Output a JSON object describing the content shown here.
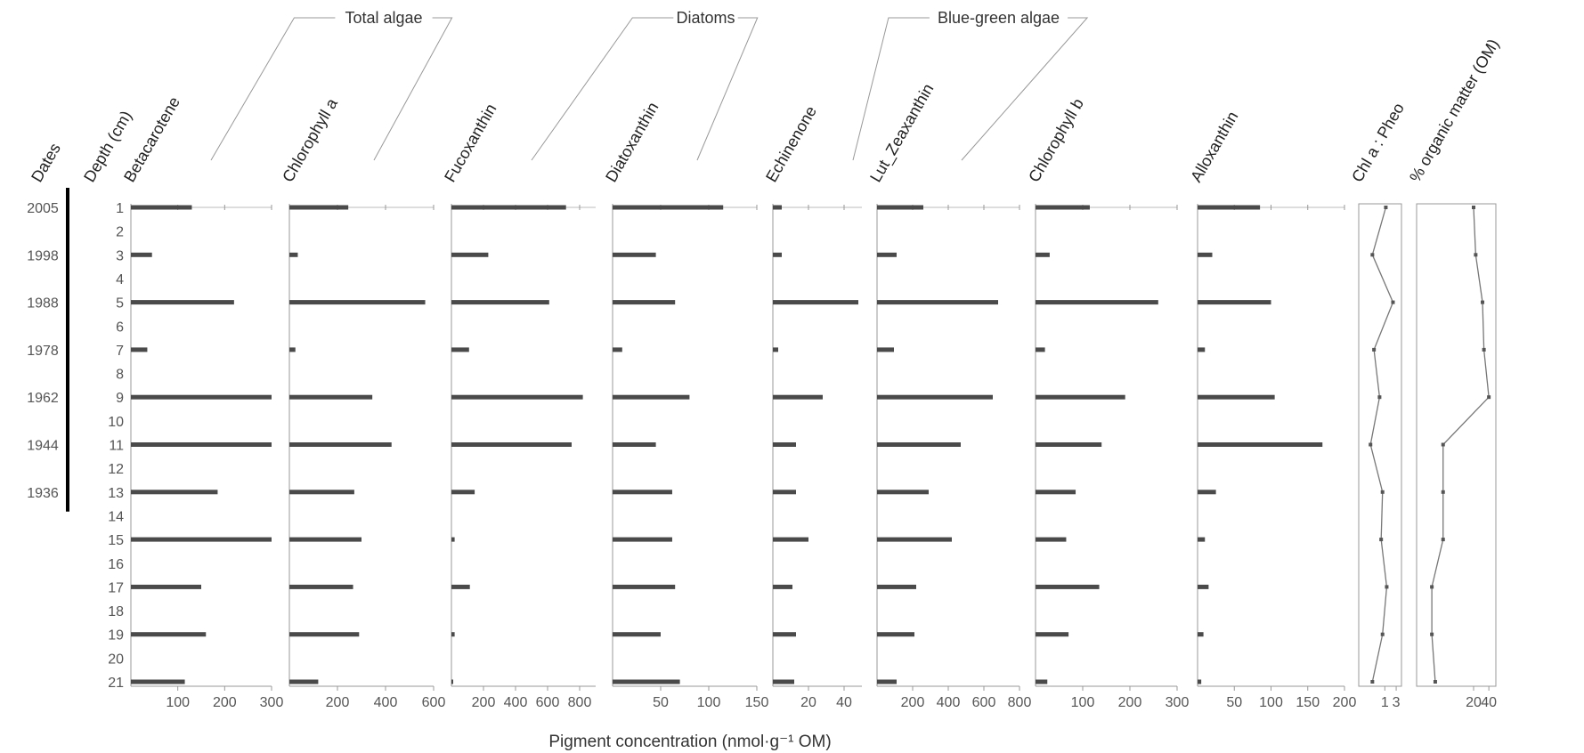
{
  "chart_data": {
    "type": "bar",
    "xlabel": "Pigment concentration (nmol·g⁻¹ OM)",
    "left_axis": {
      "dates_label": "Dates",
      "depth_label": "Depth (cm)",
      "depths": [
        1,
        2,
        3,
        4,
        5,
        6,
        7,
        8,
        9,
        10,
        11,
        12,
        13,
        14,
        15,
        16,
        17,
        18,
        19,
        20,
        21
      ],
      "date_marks": [
        {
          "depth": 1,
          "label": "2005"
        },
        {
          "depth": 3,
          "label": "1998"
        },
        {
          "depth": 5,
          "label": "1988"
        },
        {
          "depth": 7,
          "label": "1978"
        },
        {
          "depth": 9,
          "label": "1962"
        },
        {
          "depth": 11,
          "label": "1944"
        },
        {
          "depth": 13,
          "label": "1936"
        }
      ]
    },
    "groups": [
      {
        "label": "Total algae",
        "panels": [
          0,
          1
        ]
      },
      {
        "label": "Diatoms",
        "panels": [
          2,
          3
        ]
      },
      {
        "label": "Blue-green algae",
        "panels": [
          4,
          5
        ]
      }
    ],
    "series_depths": [
      1,
      3,
      5,
      7,
      9,
      11,
      13,
      15,
      17,
      19,
      21
    ],
    "panels": [
      {
        "name": "Betacarotene",
        "kind": "bar",
        "xlim": [
          0,
          300
        ],
        "ticks": [
          100,
          200,
          300
        ],
        "values": [
          130,
          45,
          220,
          35,
          300,
          300,
          185,
          300,
          150,
          160,
          115
        ]
      },
      {
        "name": "Chlorophyll a",
        "kind": "bar",
        "xlim": [
          0,
          600
        ],
        "ticks": [
          200,
          400,
          600
        ],
        "values": [
          245,
          35,
          565,
          25,
          345,
          425,
          270,
          300,
          265,
          290,
          120
        ]
      },
      {
        "name": "Fucoxanthin",
        "kind": "bar",
        "xlim": [
          0,
          900
        ],
        "ticks": [
          200,
          400,
          600,
          800
        ],
        "values": [
          715,
          230,
          610,
          110,
          820,
          750,
          145,
          20,
          115,
          20,
          10
        ]
      },
      {
        "name": "Diatoxanthin",
        "kind": "bar",
        "xlim": [
          0,
          150
        ],
        "ticks": [
          50,
          100,
          150
        ],
        "values": [
          115,
          45,
          65,
          10,
          80,
          45,
          62,
          62,
          65,
          50,
          70
        ]
      },
      {
        "name": "Echinenone",
        "kind": "bar",
        "xlim": [
          0,
          50
        ],
        "ticks": [
          20,
          40
        ],
        "values": [
          5,
          5,
          48,
          3,
          28,
          13,
          13,
          20,
          11,
          13,
          12
        ]
      },
      {
        "name": "Lut_Zeaxanthin",
        "kind": "bar",
        "xlim": [
          0,
          800
        ],
        "ticks": [
          200,
          400,
          600,
          800
        ],
        "values": [
          260,
          110,
          680,
          95,
          650,
          470,
          290,
          420,
          220,
          210,
          110
        ]
      },
      {
        "name": "Chlorophyll b",
        "kind": "bar",
        "xlim": [
          0,
          300
        ],
        "ticks": [
          100,
          200,
          300
        ],
        "values": [
          115,
          30,
          260,
          20,
          190,
          140,
          85,
          65,
          135,
          70,
          25
        ]
      },
      {
        "name": "Alloxanthin",
        "kind": "bar",
        "xlim": [
          0,
          200
        ],
        "ticks": [
          50,
          100,
          150,
          200
        ],
        "values": [
          85,
          20,
          100,
          10,
          105,
          170,
          25,
          10,
          15,
          8,
          5
        ]
      },
      {
        "name": "Chl a : Pheo",
        "kind": "line",
        "scale": "log",
        "xlim": [
          0.08,
          5
        ],
        "ticks": [
          1,
          3
        ],
        "values": [
          1.1,
          0.3,
          2.2,
          0.35,
          0.6,
          0.25,
          0.8,
          0.7,
          1.2,
          0.8,
          0.3
        ]
      },
      {
        "name": "% organic matter (OM)",
        "kind": "line",
        "scale": "log",
        "xlim": [
          1.5,
          55
        ],
        "ticks": [
          20,
          40
        ],
        "values": [
          20,
          22,
          30,
          32,
          40,
          5,
          5,
          5,
          3,
          3,
          3.5
        ]
      }
    ]
  }
}
